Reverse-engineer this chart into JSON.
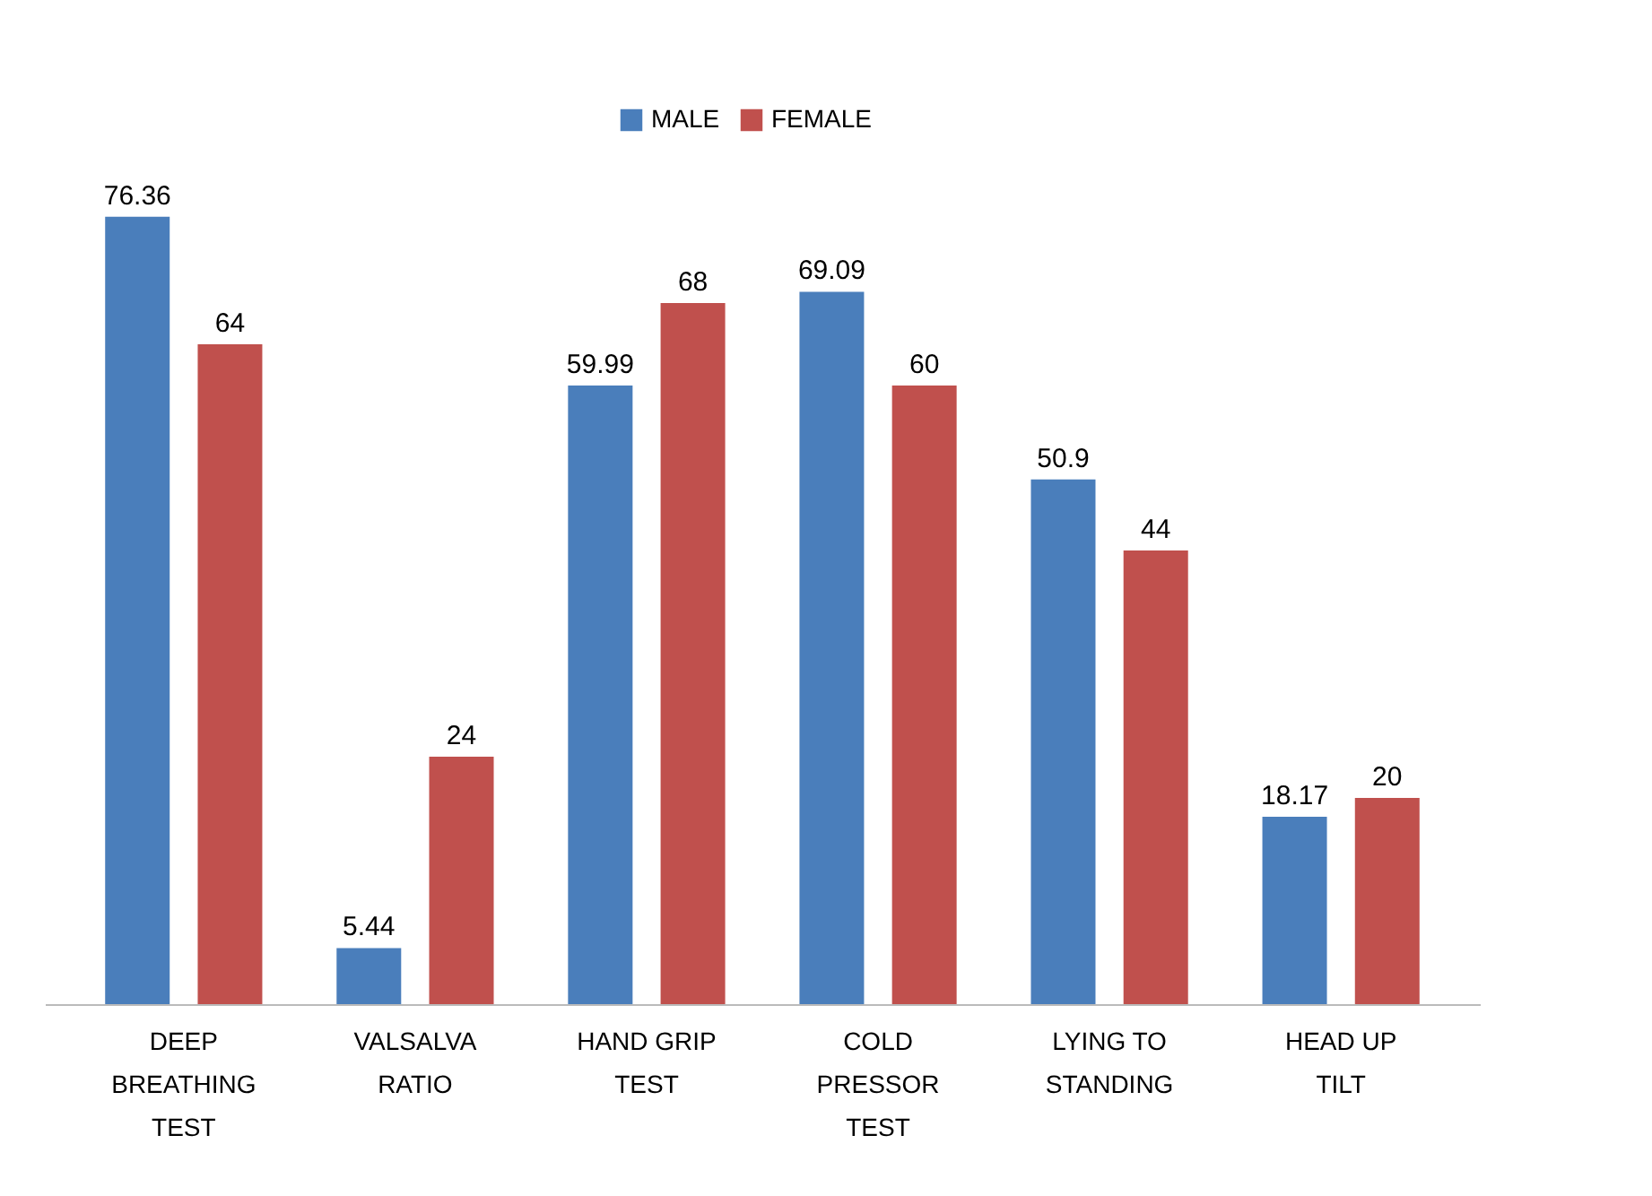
{
  "chart_data": {
    "type": "bar",
    "categories": [
      "DEEP BREATHING TEST",
      "VALSALVA RATIO",
      "HAND GRIP TEST",
      "COLD PRESSOR TEST",
      "LYING TO STANDING",
      "HEAD UP TILT"
    ],
    "series": [
      {
        "name": "MALE",
        "color": "#4a7ebb",
        "values": [
          76.36,
          5.44,
          59.99,
          69.09,
          50.9,
          18.17
        ]
      },
      {
        "name": "FEMALE",
        "color": "#c0504d",
        "values": [
          64,
          24,
          68,
          60,
          44,
          20
        ]
      }
    ],
    "data_labels": true,
    "legend": "top"
  }
}
